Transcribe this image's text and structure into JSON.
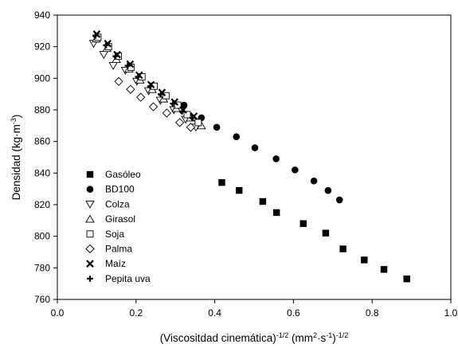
{
  "chart_data": {
    "type": "scatter",
    "title": "",
    "xlabel": "(Viscositdad cinemática)-1/2 (mm2·s-1)-1/2",
    "xlabel_parts": [
      "(Viscositdad cinemática)",
      "-1/2",
      " (mm",
      "2",
      "·s",
      "-1",
      ")",
      "-1/2"
    ],
    "ylabel": "Densidad (kg·m-3)",
    "ylabel_parts": [
      "Densidad (kg·m",
      "-3",
      ")"
    ],
    "xlim": [
      0.0,
      1.0
    ],
    "ylim": [
      760,
      940
    ],
    "xticks": [
      "0.0",
      "0.2",
      "0.4",
      "0.6",
      "0.8",
      "1.0"
    ],
    "xtick_values": [
      0.0,
      0.2,
      0.4,
      0.6,
      0.8,
      1.0
    ],
    "yticks": [
      "760",
      "780",
      "800",
      "820",
      "840",
      "860",
      "880",
      "900",
      "920",
      "940"
    ],
    "ytick_values": [
      760,
      780,
      800,
      820,
      840,
      860,
      880,
      900,
      920,
      940
    ],
    "grid": false,
    "legend_position": "left-center",
    "series": [
      {
        "name": "Gasóleo",
        "marker": "square-filled",
        "x": [
          0.418,
          0.462,
          0.522,
          0.557,
          0.625,
          0.682,
          0.726,
          0.78,
          0.83,
          0.888
        ],
        "y": [
          834,
          829,
          822,
          815,
          808,
          802,
          792,
          785,
          779,
          773
        ]
      },
      {
        "name": "BD100",
        "marker": "circle-filled",
        "x": [
          0.322,
          0.366,
          0.405,
          0.455,
          0.502,
          0.556,
          0.604,
          0.652,
          0.688,
          0.717
        ],
        "y": [
          883,
          875,
          869,
          863,
          856,
          849,
          842,
          835,
          829,
          823
        ]
      },
      {
        "name": "Colza",
        "marker": "triangle-down-open",
        "x": [
          0.092,
          0.118,
          0.142,
          0.173,
          0.202,
          0.232,
          0.262,
          0.296,
          0.326,
          0.352
        ],
        "y": [
          922,
          915,
          908,
          905,
          898,
          892,
          886,
          880,
          874,
          869
        ]
      },
      {
        "name": "Girasol",
        "marker": "triangle-up-open",
        "x": [
          0.099,
          0.126,
          0.15,
          0.182,
          0.21,
          0.241,
          0.27,
          0.302,
          0.338,
          0.366
        ],
        "y": [
          925,
          919,
          912,
          906,
          899,
          893,
          887,
          881,
          875,
          870
        ]
      },
      {
        "name": "Soja",
        "marker": "square-open",
        "x": [
          0.103,
          0.13,
          0.155,
          0.187,
          0.215,
          0.246,
          0.276,
          0.306,
          0.33,
          0.358
        ],
        "y": [
          926,
          920,
          914,
          907,
          901,
          895,
          889,
          883,
          877,
          872
        ]
      },
      {
        "name": "Palma",
        "marker": "diamond-open",
        "x": [
          0.156,
          0.186,
          0.212,
          0.244,
          0.278,
          0.311,
          0.339
        ],
        "y": [
          898,
          893,
          888,
          882,
          878,
          872,
          869
        ]
      },
      {
        "name": "Maíz",
        "marker": "x",
        "x": [
          0.1,
          0.128,
          0.152,
          0.185,
          0.208,
          0.238,
          0.266,
          0.298,
          0.32,
          0.347
        ],
        "y": [
          928,
          922,
          915,
          909,
          902,
          896,
          891,
          885,
          880,
          876
        ]
      },
      {
        "name": "Pepita uva",
        "marker": "plus",
        "x": [
          0.097,
          0.124,
          0.148,
          0.179,
          0.205,
          0.236,
          0.263,
          0.294,
          0.317,
          0.343
        ],
        "y": [
          927,
          921,
          914,
          908,
          901,
          895,
          890,
          884,
          879,
          875
        ]
      }
    ]
  }
}
